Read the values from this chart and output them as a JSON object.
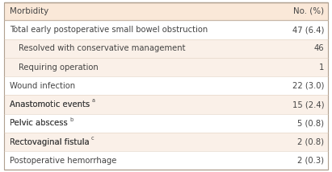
{
  "col1_header": "Morbidity",
  "col2_header": "No. (%)",
  "rows": [
    {
      "label": "Total early postoperative small bowel obstruction",
      "value": "47 (6.4)",
      "indent": 0,
      "shaded": false,
      "superscript": ""
    },
    {
      "label": "Resolved with conservative management",
      "value": "46",
      "indent": 1,
      "shaded": true,
      "superscript": ""
    },
    {
      "label": "Requiring operation",
      "value": "1",
      "indent": 1,
      "shaded": true,
      "superscript": ""
    },
    {
      "label": "Wound infection",
      "value": "22 (3.0)",
      "indent": 0,
      "shaded": false,
      "superscript": ""
    },
    {
      "label": "Anastomotic events",
      "value": "15 (2.4)",
      "indent": 0,
      "shaded": true,
      "superscript": "a"
    },
    {
      "label": "Pelvic abscess",
      "value": "5 (0.8)",
      "indent": 0,
      "shaded": false,
      "superscript": "b"
    },
    {
      "label": "Rectovaginal fistula",
      "value": "2 (0.8)",
      "indent": 0,
      "shaded": true,
      "superscript": "c"
    },
    {
      "label": "Postoperative hemorrhage",
      "value": "2 (0.3)",
      "indent": 0,
      "shaded": false,
      "superscript": ""
    }
  ],
  "header_bg": "#fae8d8",
  "shaded_bg": "#faf0e8",
  "unshaded_bg": "#ffffff",
  "top_line_color": "#b0a090",
  "header_line_color": "#c8b8a8",
  "row_line_color": "#e0d0c0",
  "bottom_line_color": "#b0a090",
  "text_color": "#444444",
  "header_text_color": "#444444",
  "font_size": 7.2,
  "header_font_size": 7.4,
  "col_split": 0.755,
  "indent_size": 0.025,
  "fig_width": 4.11,
  "fig_height": 2.14,
  "dpi": 100
}
